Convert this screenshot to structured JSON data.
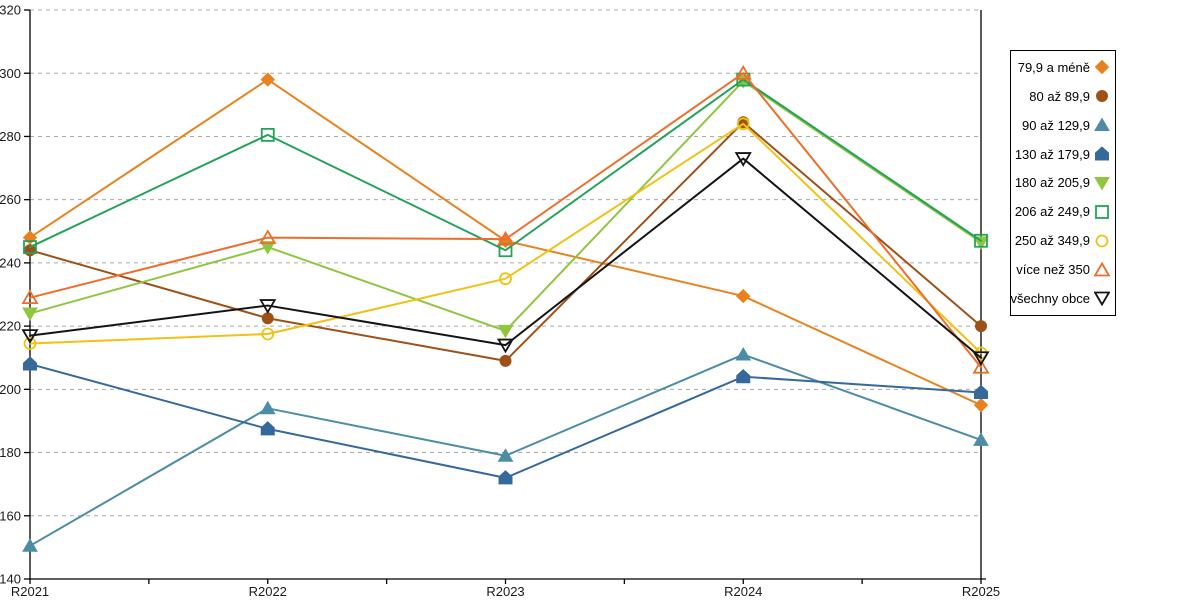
{
  "chart_data": {
    "type": "line",
    "title": "",
    "xlabel": "",
    "ylabel": "",
    "categories": [
      "R2021",
      "R2022",
      "R2023",
      "R2024",
      "R2025"
    ],
    "y_axis": {
      "min": 140,
      "max": 320,
      "step": 20
    },
    "grid": "horizontal-dashed",
    "grid_color": "#aaaaaa",
    "axis_color": "#000000",
    "legend_position": "right",
    "series": [
      {
        "name": "79,9 a méně",
        "marker": "diamond",
        "fill": "filled",
        "color": "#E8821E",
        "values": [
          248,
          298,
          247,
          229.5,
          195
        ]
      },
      {
        "name": "80 až 89,9",
        "marker": "circle",
        "fill": "filled",
        "color": "#9E5117",
        "values": [
          244,
          222.5,
          209,
          284.5,
          220
        ]
      },
      {
        "name": "90 až 129,9",
        "marker": "triangle-up",
        "fill": "filled",
        "color": "#4C8CA4",
        "values": [
          150.5,
          194,
          179,
          211,
          184
        ]
      },
      {
        "name": "130 až 179,9",
        "marker": "pentagon",
        "fill": "filled",
        "color": "#35689B",
        "values": [
          208,
          187.5,
          172,
          204,
          199
        ]
      },
      {
        "name": "180 až 205,9",
        "marker": "triangle-down",
        "fill": "filled",
        "color": "#90C63F",
        "values": [
          224,
          245,
          218.5,
          297.5,
          246.5
        ]
      },
      {
        "name": "206 až 249,9",
        "marker": "square",
        "fill": "open",
        "color": "#23A259",
        "values": [
          245,
          280.5,
          244,
          298,
          247
        ]
      },
      {
        "name": "250 až 349,9",
        "marker": "circle",
        "fill": "open",
        "color": "#F1C215",
        "values": [
          214.5,
          217.5,
          235,
          284,
          211.5
        ]
      },
      {
        "name": "více než 350",
        "marker": "triangle-up",
        "fill": "open",
        "color": "#EE6D2A",
        "values": [
          229,
          248,
          247.5,
          300,
          207
        ]
      },
      {
        "name": "všechny obce",
        "marker": "triangle-down",
        "fill": "open",
        "color": "#141414",
        "values": [
          217,
          226.5,
          214,
          273,
          210
        ]
      }
    ]
  }
}
